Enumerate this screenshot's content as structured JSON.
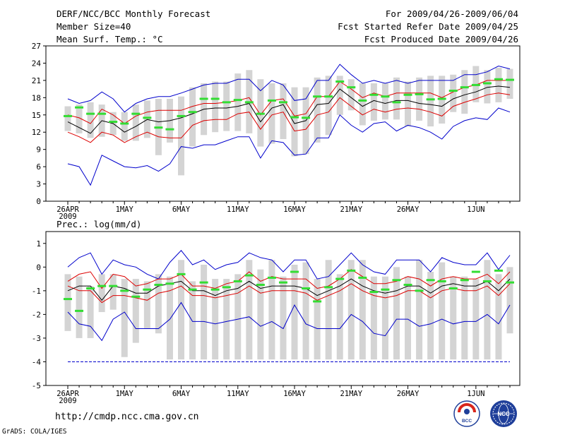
{
  "header": {
    "title": "DERF/NCC/BCC Monthly Forecast",
    "member_size": "Member Size=40",
    "variable_top": "Mean Surf. Temp.: °C",
    "forecast_period": "For 2009/04/26-2009/06/04",
    "started_refer_date": "Fcst Started Refer Date 2009/04/25",
    "produced_date": "Fcst Produced Date 2009/04/26"
  },
  "footer": {
    "url": "http://cmdp.ncc.cma.gov.cn",
    "credit": "GrADS: COLA/IGES"
  },
  "logos": {
    "bcc_label": "BCC",
    "ncc_label": "NCC"
  },
  "colors": {
    "ensemble_mean": "#000000",
    "spread_bounds": "#dd0000",
    "extremes": "#0000cc",
    "observed": "#33dd33",
    "boxes": "#d4d4d4",
    "reference_line": "#0000cc"
  },
  "chart_data": [
    {
      "id": "temperature",
      "type": "line",
      "title": "Mean Surf. Temp.: °C",
      "x": [
        "26APR",
        "27APR",
        "28APR",
        "29APR",
        "30APR",
        "1MAY",
        "2MAY",
        "3MAY",
        "4MAY",
        "5MAY",
        "6MAY",
        "7MAY",
        "8MAY",
        "9MAY",
        "10MAY",
        "11MAY",
        "12MAY",
        "13MAY",
        "14MAY",
        "15MAY",
        "16MAY",
        "17MAY",
        "18MAY",
        "19MAY",
        "20MAY",
        "21MAY",
        "22MAY",
        "23MAY",
        "24MAY",
        "25MAY",
        "26MAY",
        "27MAY",
        "28MAY",
        "29MAY",
        "30MAY",
        "31MAY",
        "1JUN",
        "2JUN",
        "3JUN",
        "4JUN"
      ],
      "x_ticks": [
        "26APR",
        "1MAY",
        "6MAY",
        "11MAY",
        "16MAY",
        "21MAY",
        "26MAY",
        "1JUN"
      ],
      "x_ticks_sub": {
        "26APR": "2009"
      },
      "ylim": [
        0,
        27
      ],
      "y_ticks": [
        0,
        3,
        6,
        9,
        12,
        15,
        18,
        21,
        24,
        27
      ],
      "series": [
        {
          "name": "max",
          "role": "extremes",
          "values": [
            17.8,
            17,
            17.5,
            19,
            17.8,
            15.5,
            17,
            17.8,
            18.2,
            18.2,
            18.8,
            19.5,
            20.2,
            20.5,
            20.5,
            21.2,
            21.2,
            19.2,
            21,
            20.2,
            17.5,
            17.8,
            21,
            21,
            23.8,
            22,
            20.5,
            21,
            20.5,
            21,
            20.5,
            21,
            21,
            21,
            21,
            22,
            22,
            22.5,
            23.5,
            23
          ]
        },
        {
          "name": "upper",
          "role": "spread_bounds",
          "values": [
            15,
            14.5,
            13.5,
            16,
            15,
            13.5,
            14.8,
            15.5,
            15.8,
            15.8,
            15.8,
            16.5,
            17,
            17,
            17.2,
            17.5,
            18,
            15,
            17.5,
            17.8,
            14.8,
            15.2,
            18.2,
            18.2,
            20.8,
            19.5,
            18,
            18.8,
            18.2,
            18.8,
            18.8,
            18.8,
            18.8,
            18,
            19,
            19.8,
            20.2,
            21,
            21,
            21
          ]
        },
        {
          "name": "mean",
          "role": "ensemble_mean",
          "values": [
            13.8,
            12.8,
            11.8,
            14,
            13.5,
            12,
            13,
            14.2,
            13.8,
            14,
            14.5,
            15.2,
            16,
            16.2,
            16.2,
            16.5,
            17,
            13.8,
            16.2,
            16.8,
            13.5,
            14,
            16.8,
            17,
            19.5,
            18,
            16.5,
            17.5,
            17,
            17.5,
            17.5,
            17,
            16.8,
            16.5,
            17.8,
            18.5,
            19,
            19.8,
            20,
            19.8
          ]
        },
        {
          "name": "lower",
          "role": "spread_bounds",
          "values": [
            12,
            11.2,
            10.2,
            12,
            11.5,
            10.2,
            11.2,
            12,
            11.2,
            11,
            11,
            13.2,
            14,
            14.2,
            14.2,
            15.2,
            15.5,
            12.5,
            15,
            15.5,
            12.2,
            12.5,
            15,
            15.5,
            18,
            16.5,
            15,
            16,
            15.5,
            16,
            16.2,
            16,
            15.5,
            14.8,
            16.5,
            17.2,
            17.8,
            18.5,
            18.8,
            18.5
          ]
        },
        {
          "name": "min",
          "role": "extremes",
          "values": [
            6.5,
            6,
            2.8,
            8,
            7,
            6,
            5.8,
            6.2,
            5.2,
            6.5,
            9.5,
            9.2,
            9.8,
            9.8,
            10.5,
            11.2,
            11.2,
            7.5,
            10.5,
            10.2,
            8,
            8.2,
            11,
            11,
            15,
            13.2,
            12,
            13.5,
            13.8,
            12.2,
            13.2,
            12.8,
            12,
            10.8,
            13,
            14,
            14.5,
            14.2,
            16.2,
            15.5
          ]
        },
        {
          "name": "observed",
          "role": "observed",
          "values": [
            14.8,
            16.3,
            15.2,
            15.2,
            13.8,
            13.5,
            15.2,
            14.5,
            12.8,
            12.5,
            14.8,
            15.5,
            17.8,
            17.8,
            17.2,
            17.6,
            17.2,
            15.2,
            17.5,
            17.2,
            14.6,
            14.5,
            18.2,
            18.2,
            20.8,
            19.8,
            17.5,
            18.5,
            18.2,
            17.2,
            18.5,
            18.6,
            17.7,
            17.8,
            19.2,
            19.8,
            20.2,
            20.5,
            21.2,
            21.1
          ]
        },
        {
          "name": "box_high",
          "role": "boxes",
          "values": [
            16.5,
            16.8,
            17.2,
            16.8,
            15.5,
            15.5,
            16.8,
            17.5,
            17.8,
            17.8,
            18.2,
            19.8,
            20.5,
            20.8,
            20.8,
            22.2,
            22.8,
            21.2,
            20.5,
            20.5,
            19.8,
            19.8,
            21.5,
            21.8,
            21.8,
            21.2,
            20.5,
            20.5,
            20.5,
            21.5,
            20.8,
            21.5,
            21.8,
            21.8,
            22,
            22.8,
            23.5,
            22.8,
            23.2,
            23
          ]
        },
        {
          "name": "box_low",
          "role": "boxes",
          "values": [
            12.2,
            11.8,
            11,
            11.2,
            11.5,
            10.5,
            10.5,
            11,
            8,
            10.2,
            4.5,
            9.5,
            11.5,
            12,
            12.2,
            12.2,
            11.8,
            9.5,
            10,
            10.8,
            7.8,
            8.2,
            10.2,
            11.5,
            15,
            15.8,
            13.2,
            14,
            14.2,
            14.2,
            13,
            14,
            13,
            13.5,
            15.5,
            15.2,
            17.2,
            17,
            17.2,
            17.8
          ]
        }
      ]
    },
    {
      "id": "precipitation",
      "type": "line",
      "title": "Prec.: log(mm/d)",
      "x": [
        "26APR",
        "27APR",
        "28APR",
        "29APR",
        "30APR",
        "1MAY",
        "2MAY",
        "3MAY",
        "4MAY",
        "5MAY",
        "6MAY",
        "7MAY",
        "8MAY",
        "9MAY",
        "10MAY",
        "11MAY",
        "12MAY",
        "13MAY",
        "14MAY",
        "15MAY",
        "16MAY",
        "17MAY",
        "18MAY",
        "19MAY",
        "20MAY",
        "21MAY",
        "22MAY",
        "23MAY",
        "24MAY",
        "25MAY",
        "26MAY",
        "27MAY",
        "28MAY",
        "29MAY",
        "30MAY",
        "31MAY",
        "1JUN",
        "2JUN",
        "3JUN",
        "4JUN"
      ],
      "x_ticks": [
        "26APR",
        "1MAY",
        "6MAY",
        "11MAY",
        "16MAY",
        "21MAY",
        "26MAY",
        "1JUN"
      ],
      "x_ticks_sub": {
        "26APR": "2009"
      },
      "ylim": [
        -5,
        1.5
      ],
      "y_ticks": [
        -5,
        -4,
        -3,
        -2,
        -1,
        0,
        1
      ],
      "reference_line": -4,
      "series": [
        {
          "name": "max",
          "role": "extremes",
          "values": [
            0,
            0.4,
            0.6,
            -0.3,
            0.3,
            0.1,
            0,
            -0.3,
            -0.5,
            0.2,
            0.7,
            0.1,
            0.3,
            -0.1,
            0.1,
            0.2,
            0.6,
            0.4,
            0.3,
            -0.2,
            0.3,
            0.3,
            -0.5,
            -0.4,
            0.1,
            0.6,
            0.1,
            -0.2,
            -0.3,
            0.3,
            0.3,
            0.3,
            -0.2,
            0.4,
            0.2,
            0.1,
            0.1,
            0.6,
            -0.1,
            0.5
          ]
        },
        {
          "name": "upper",
          "role": "spread_bounds",
          "values": [
            -0.6,
            -0.3,
            -0.2,
            -0.9,
            -0.3,
            -0.4,
            -0.8,
            -0.7,
            -0.5,
            -0.5,
            -0.3,
            -0.8,
            -0.8,
            -0.9,
            -0.7,
            -0.6,
            -0.2,
            -0.6,
            -0.4,
            -0.5,
            -0.5,
            -0.5,
            -0.9,
            -0.8,
            -0.5,
            -0.1,
            -0.4,
            -0.7,
            -0.7,
            -0.6,
            -0.4,
            -0.5,
            -0.8,
            -0.5,
            -0.4,
            -0.5,
            -0.5,
            -0.3,
            -0.7,
            -0.2
          ]
        },
        {
          "name": "mean",
          "role": "ensemble_mean",
          "values": [
            -1.0,
            -0.8,
            -0.8,
            -1.4,
            -0.8,
            -0.9,
            -1.1,
            -1.1,
            -0.8,
            -0.7,
            -0.6,
            -1.0,
            -1.0,
            -1.2,
            -1.0,
            -0.9,
            -0.6,
            -0.9,
            -0.8,
            -0.8,
            -0.8,
            -0.9,
            -1.2,
            -1.0,
            -0.8,
            -0.5,
            -0.8,
            -1.0,
            -1.1,
            -1.0,
            -0.8,
            -0.8,
            -1.1,
            -0.8,
            -0.7,
            -0.8,
            -0.8,
            -0.6,
            -1.0,
            -0.5
          ]
        },
        {
          "name": "lower",
          "role": "spread_bounds",
          "values": [
            -0.8,
            -1.0,
            -1.0,
            -1.5,
            -1.2,
            -1.2,
            -1.3,
            -1.4,
            -1.1,
            -1.0,
            -0.8,
            -1.2,
            -1.2,
            -1.3,
            -1.2,
            -1.1,
            -0.8,
            -1.1,
            -1.0,
            -1.0,
            -1.0,
            -1.1,
            -1.4,
            -1.2,
            -1.0,
            -0.7,
            -1.0,
            -1.2,
            -1.3,
            -1.2,
            -1.0,
            -1.0,
            -1.3,
            -1.0,
            -0.9,
            -1.0,
            -1.0,
            -0.8,
            -1.2,
            -0.7
          ]
        },
        {
          "name": "min",
          "role": "extremes",
          "values": [
            -1.9,
            -2.4,
            -2.5,
            -3.1,
            -2.2,
            -1.9,
            -2.6,
            -2.6,
            -2.6,
            -2.2,
            -1.5,
            -2.3,
            -2.3,
            -2.4,
            -2.3,
            -2.2,
            -2.1,
            -2.5,
            -2.3,
            -2.6,
            -1.6,
            -2.4,
            -2.6,
            -2.6,
            -2.6,
            -2.0,
            -2.3,
            -2.8,
            -2.9,
            -2.2,
            -2.2,
            -2.5,
            -2.4,
            -2.2,
            -2.4,
            -2.3,
            -2.3,
            -2.0,
            -2.4,
            -1.6
          ]
        },
        {
          "name": "observed",
          "role": "observed",
          "values": [
            -1.35,
            -1.85,
            -0.9,
            -0.8,
            -0.8,
            -1.0,
            -1.25,
            -0.95,
            -0.75,
            -0.7,
            -0.3,
            -0.95,
            -0.65,
            -0.95,
            -0.85,
            -0.6,
            -0.35,
            -0.75,
            -0.45,
            -0.65,
            -0.2,
            -0.9,
            -1.45,
            -0.85,
            -0.5,
            -0.15,
            -0.45,
            -1.05,
            -0.95,
            -0.55,
            -0.75,
            -1.0,
            -0.55,
            -0.6,
            -0.9,
            -0.55,
            -0.2,
            -0.6,
            -0.15,
            -0.65
          ]
        },
        {
          "name": "box_high",
          "role": "boxes",
          "values": [
            -0.3,
            -0.4,
            -0.8,
            -0.3,
            -0.3,
            -0.5,
            -0.5,
            -0.6,
            -0.3,
            -0.4,
            0.3,
            -0.6,
            0.1,
            -0.5,
            -0.5,
            -0.3,
            0.3,
            -0.1,
            0.3,
            -0.4,
            0.1,
            0.2,
            -0.5,
            0.3,
            -0.3,
            0.3,
            0.3,
            -0.4,
            -0.4,
            0,
            -0.4,
            0.3,
            -0.2,
            0.2,
            -0.4,
            -0.4,
            -0.5,
            0.3,
            -0.3,
            0
          ]
        },
        {
          "name": "box_low",
          "role": "boxes",
          "values": [
            -2.7,
            -3.0,
            -3.0,
            -1.9,
            -1.8,
            -3.8,
            -3.2,
            -2.6,
            -2.8,
            -3.9,
            -3.9,
            -3.9,
            -3.9,
            -3.9,
            -3.9,
            -3.9,
            -3.9,
            -3.9,
            -3.9,
            -3.9,
            -3.9,
            -3.9,
            -3.9,
            -3.9,
            -3.9,
            -3.9,
            -3.9,
            -3.9,
            -3.9,
            -3.9,
            -3.9,
            -3.9,
            -3.9,
            -3.9,
            -3.9,
            -3.9,
            -3.9,
            -3.9,
            -3.9,
            -2.8
          ]
        }
      ]
    }
  ]
}
